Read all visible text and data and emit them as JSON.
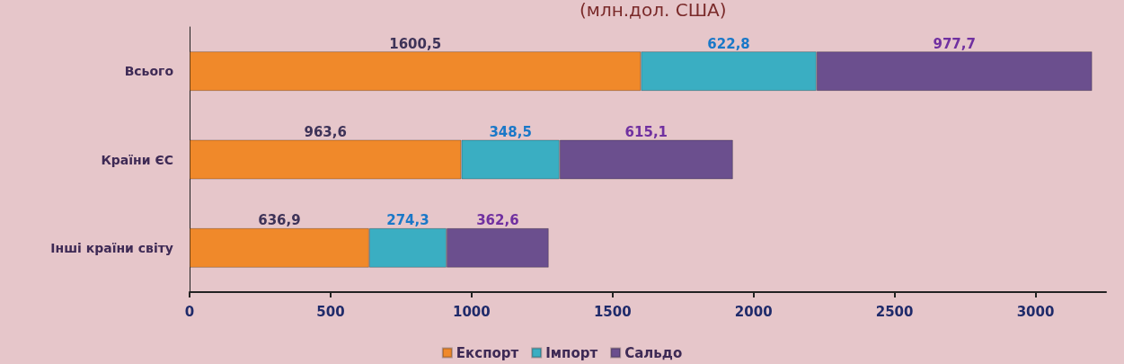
{
  "chart_data": {
    "type": "bar",
    "orientation": "horizontal",
    "stacked": true,
    "title": "(млн.дол. США)",
    "categories": [
      "Всього",
      "Країни ЄС",
      "Інші країни світу"
    ],
    "series": [
      {
        "name": "Експорт",
        "color": "#f0892a",
        "values": [
          1600.5,
          963.6,
          636.9
        ],
        "value_labels": [
          "1600,5",
          "963,6",
          "636,9"
        ]
      },
      {
        "name": "Імпорт",
        "color": "#3aaec2",
        "values": [
          622.8,
          348.5,
          274.3
        ],
        "value_labels": [
          "622,8",
          "348,5",
          "274,3"
        ]
      },
      {
        "name": "Сальдо",
        "color": "#6b4f8e",
        "values": [
          977.7,
          615.1,
          362.6
        ],
        "value_labels": [
          "977,7",
          "615,1",
          "362,6"
        ]
      }
    ],
    "xlim": [
      0,
      3250
    ],
    "xticks": [
      0,
      500,
      1000,
      1500,
      2000,
      2500,
      3000
    ],
    "grid": false,
    "legend": "bottom"
  }
}
